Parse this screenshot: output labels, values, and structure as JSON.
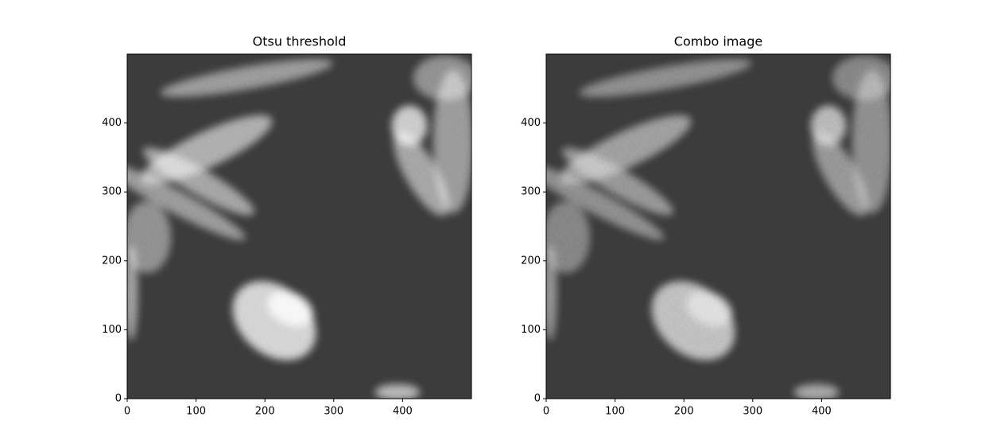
{
  "chart_data": [
    {
      "type": "image",
      "title": "Otsu threshold",
      "background": "#000000",
      "xlim": [
        0,
        500
      ],
      "ylim": [
        0,
        500
      ],
      "xticks": [
        0,
        100,
        200,
        300,
        400
      ],
      "yticks": [
        0,
        100,
        200,
        300,
        400
      ]
    },
    {
      "type": "image",
      "title": "Combo image",
      "background": "#3c3c3c",
      "xlim": [
        0,
        500
      ],
      "ylim": [
        0,
        500
      ],
      "xticks": [
        0,
        100,
        200,
        300,
        400
      ],
      "yticks": [
        0,
        100,
        200,
        300,
        400
      ]
    }
  ]
}
